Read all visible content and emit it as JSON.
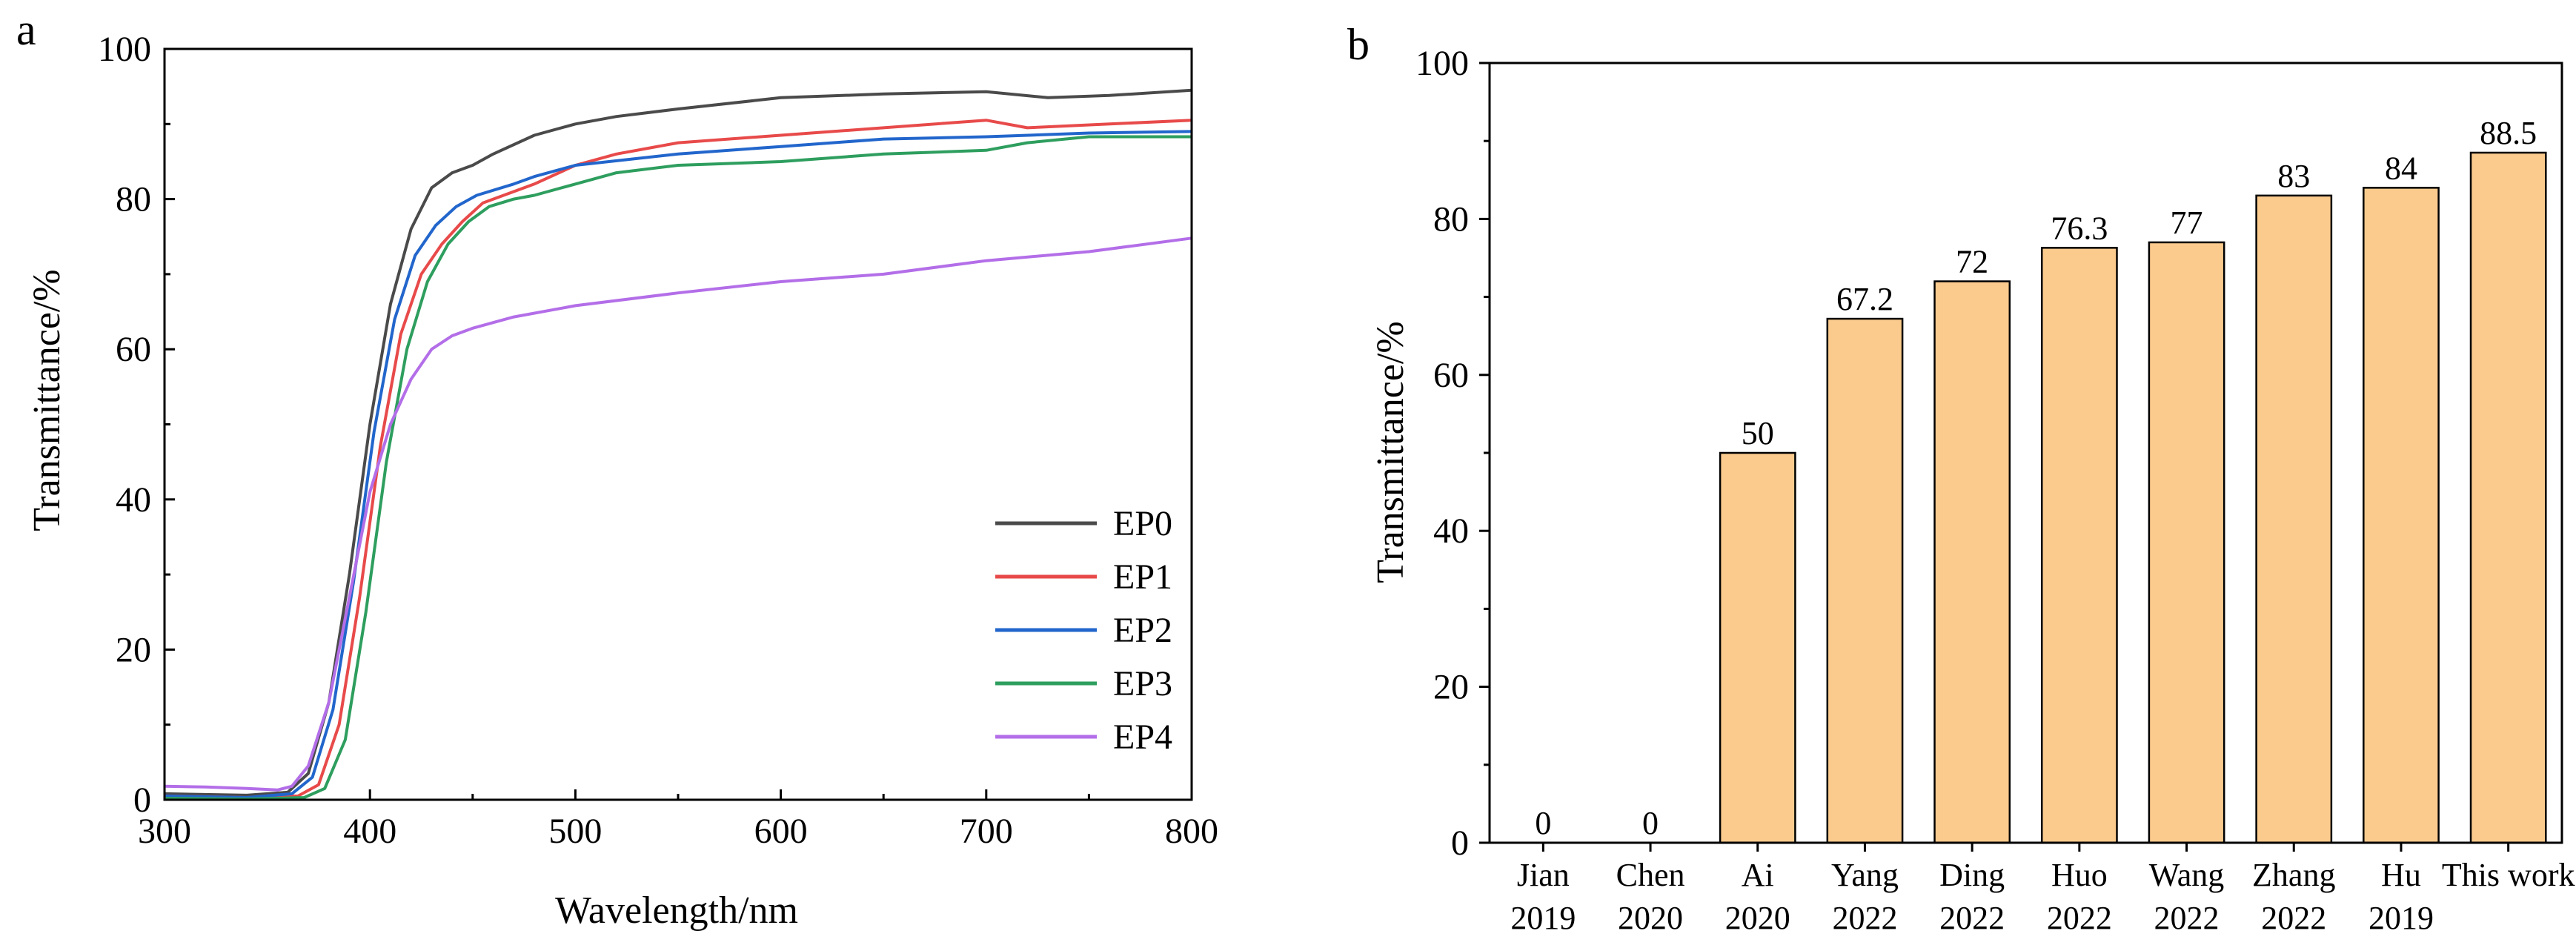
{
  "chart_data": [
    {
      "panel": "a",
      "type": "line",
      "title": "",
      "xlabel": "Wavelength/nm",
      "ylabel": "Transmittance/%",
      "xlim": [
        300,
        800
      ],
      "ylim": [
        0,
        100
      ],
      "xticks": [
        300,
        400,
        500,
        600,
        700,
        800
      ],
      "yticks": [
        0,
        20,
        40,
        60,
        80,
        100
      ],
      "legend_position": "bottom-right",
      "grid": false,
      "series": [
        {
          "name": "EP0",
          "color": "#4a4a4a",
          "x": [
            300,
            340,
            360,
            370,
            380,
            390,
            400,
            410,
            420,
            430,
            440,
            450,
            460,
            480,
            500,
            520,
            550,
            600,
            650,
            700,
            730,
            760,
            800
          ],
          "y": [
            0.8,
            0.6,
            1,
            3.5,
            13,
            30,
            50,
            66,
            76,
            81.5,
            83.5,
            84.5,
            86,
            88.5,
            90,
            91,
            92,
            93.5,
            94,
            94.3,
            93.5,
            93.8,
            94.5
          ]
        },
        {
          "name": "EP1",
          "color": "#e84a4a",
          "x": [
            300,
            340,
            365,
            375,
            385,
            395,
            405,
            415,
            425,
            435,
            445,
            455,
            470,
            480,
            500,
            520,
            550,
            600,
            650,
            700,
            720,
            760,
            800
          ],
          "y": [
            0.5,
            0.3,
            0.5,
            2,
            10,
            27,
            47,
            62,
            70,
            74,
            77,
            79.5,
            81,
            82,
            84.5,
            86,
            87.5,
            88.5,
            89.5,
            90.5,
            89.5,
            90,
            90.5
          ]
        },
        {
          "name": "EP2",
          "color": "#2266cc",
          "x": [
            300,
            340,
            362,
            372,
            382,
            392,
            402,
            412,
            422,
            432,
            442,
            452,
            470,
            480,
            500,
            550,
            600,
            650,
            700,
            750,
            800
          ],
          "y": [
            0.5,
            0.3,
            0.8,
            3,
            12,
            29,
            49,
            64,
            72.5,
            76.5,
            79,
            80.5,
            82,
            83,
            84.5,
            86,
            87,
            88,
            88.3,
            88.8,
            89
          ]
        },
        {
          "name": "EP3",
          "color": "#2e9e5e",
          "x": [
            300,
            340,
            368,
            378,
            388,
            398,
            408,
            418,
            428,
            438,
            448,
            458,
            470,
            480,
            500,
            520,
            550,
            600,
            650,
            700,
            720,
            750,
            800
          ],
          "y": [
            0.2,
            0.1,
            0.3,
            1.5,
            8,
            25,
            45,
            60,
            69,
            74,
            77,
            79,
            80,
            80.5,
            82,
            83.5,
            84.5,
            85,
            86,
            86.5,
            87.5,
            88.3,
            88.3
          ]
        },
        {
          "name": "EP4",
          "color": "#b36ee8",
          "x": [
            300,
            320,
            340,
            355,
            362,
            370,
            380,
            390,
            400,
            410,
            420,
            430,
            440,
            450,
            470,
            500,
            550,
            600,
            650,
            700,
            750,
            800
          ],
          "y": [
            1.8,
            1.7,
            1.5,
            1.3,
            1.8,
            4.5,
            13,
            27,
            41,
            50,
            56,
            60,
            61.8,
            62.8,
            64.3,
            65.8,
            67.5,
            69,
            70,
            71.8,
            73,
            74.8
          ]
        }
      ]
    },
    {
      "panel": "b",
      "type": "bar",
      "title": "",
      "xlabel": "",
      "ylabel": "Transmittance/%",
      "ylim": [
        0,
        100
      ],
      "yticks": [
        0,
        20,
        40,
        60,
        80,
        100
      ],
      "grid": false,
      "bar_color": "#fbcb8e",
      "categories": [
        {
          "name": "Jian",
          "year": "2019"
        },
        {
          "name": "Chen",
          "year": "2020"
        },
        {
          "name": "Ai",
          "year": "2020"
        },
        {
          "name": "Yang",
          "year": "2022"
        },
        {
          "name": "Ding",
          "year": "2022"
        },
        {
          "name": "Huo",
          "year": "2022"
        },
        {
          "name": "Wang",
          "year": "2022"
        },
        {
          "name": "Zhang",
          "year": "2022"
        },
        {
          "name": "Hu",
          "year": "2019"
        },
        {
          "name": "This work",
          "year": ""
        }
      ],
      "values": [
        0,
        0,
        50,
        67.2,
        72,
        76.3,
        77,
        83,
        84,
        88.5
      ],
      "value_labels": [
        "0",
        "0",
        "50",
        "67.2",
        "72",
        "76.3",
        "77",
        "83",
        "84",
        "88.5"
      ]
    }
  ]
}
